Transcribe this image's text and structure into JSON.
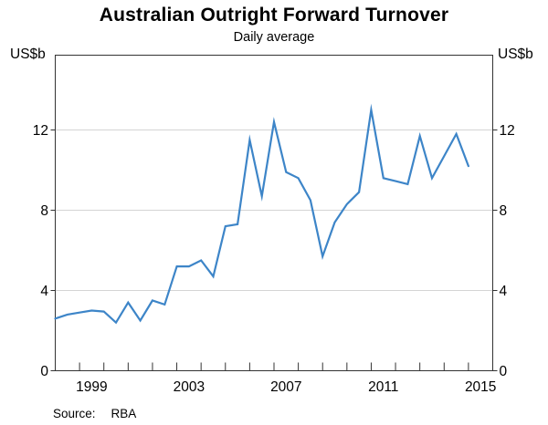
{
  "title": "Australian Outright Forward Turnover",
  "subtitle": "Daily average",
  "source": {
    "label": "Source:",
    "value": "RBA"
  },
  "colors": {
    "line": "#3d85c8",
    "grid": "#d4d4d4",
    "frame": "#333333",
    "text": "#000000"
  },
  "chart_data": {
    "type": "line",
    "title": "Australian Outright Forward Turnover",
    "subtitle": "Daily average",
    "ylabel": "US$b",
    "ylabel_right": "US$b",
    "ylim": [
      0,
      16
    ],
    "yticks": [
      0,
      4,
      8,
      12
    ],
    "xlim": [
      1998,
      2016
    ],
    "xtick_labels": [
      "1999",
      "2003",
      "2007",
      "2011",
      "2015"
    ],
    "grid": true,
    "legend": "none",
    "frequency": "semiannual",
    "x": [
      1998,
      1998.5,
      1999,
      1999.5,
      2000,
      2000.5,
      2001,
      2001.5,
      2002,
      2002.5,
      2003,
      2003.5,
      2004,
      2004.5,
      2005,
      2005.5,
      2006,
      2006.5,
      2007,
      2007.5,
      2008,
      2008.5,
      2009,
      2009.5,
      2010,
      2010.5,
      2011,
      2011.5,
      2012,
      2012.5,
      2013,
      2013.5,
      2014,
      2014.5,
      2015
    ],
    "series": [
      {
        "name": "Outright forward turnover",
        "values": [
          2.6,
          2.8,
          2.9,
          3.0,
          2.95,
          2.4,
          3.4,
          2.5,
          3.5,
          3.3,
          5.2,
          5.2,
          5.5,
          4.7,
          7.2,
          7.3,
          11.5,
          8.7,
          12.4,
          9.9,
          9.6,
          8.5,
          5.7,
          7.4,
          8.3,
          8.9,
          13.0,
          9.6,
          9.45,
          9.3,
          11.7,
          9.6,
          10.7,
          11.8,
          10.2
        ]
      }
    ]
  }
}
